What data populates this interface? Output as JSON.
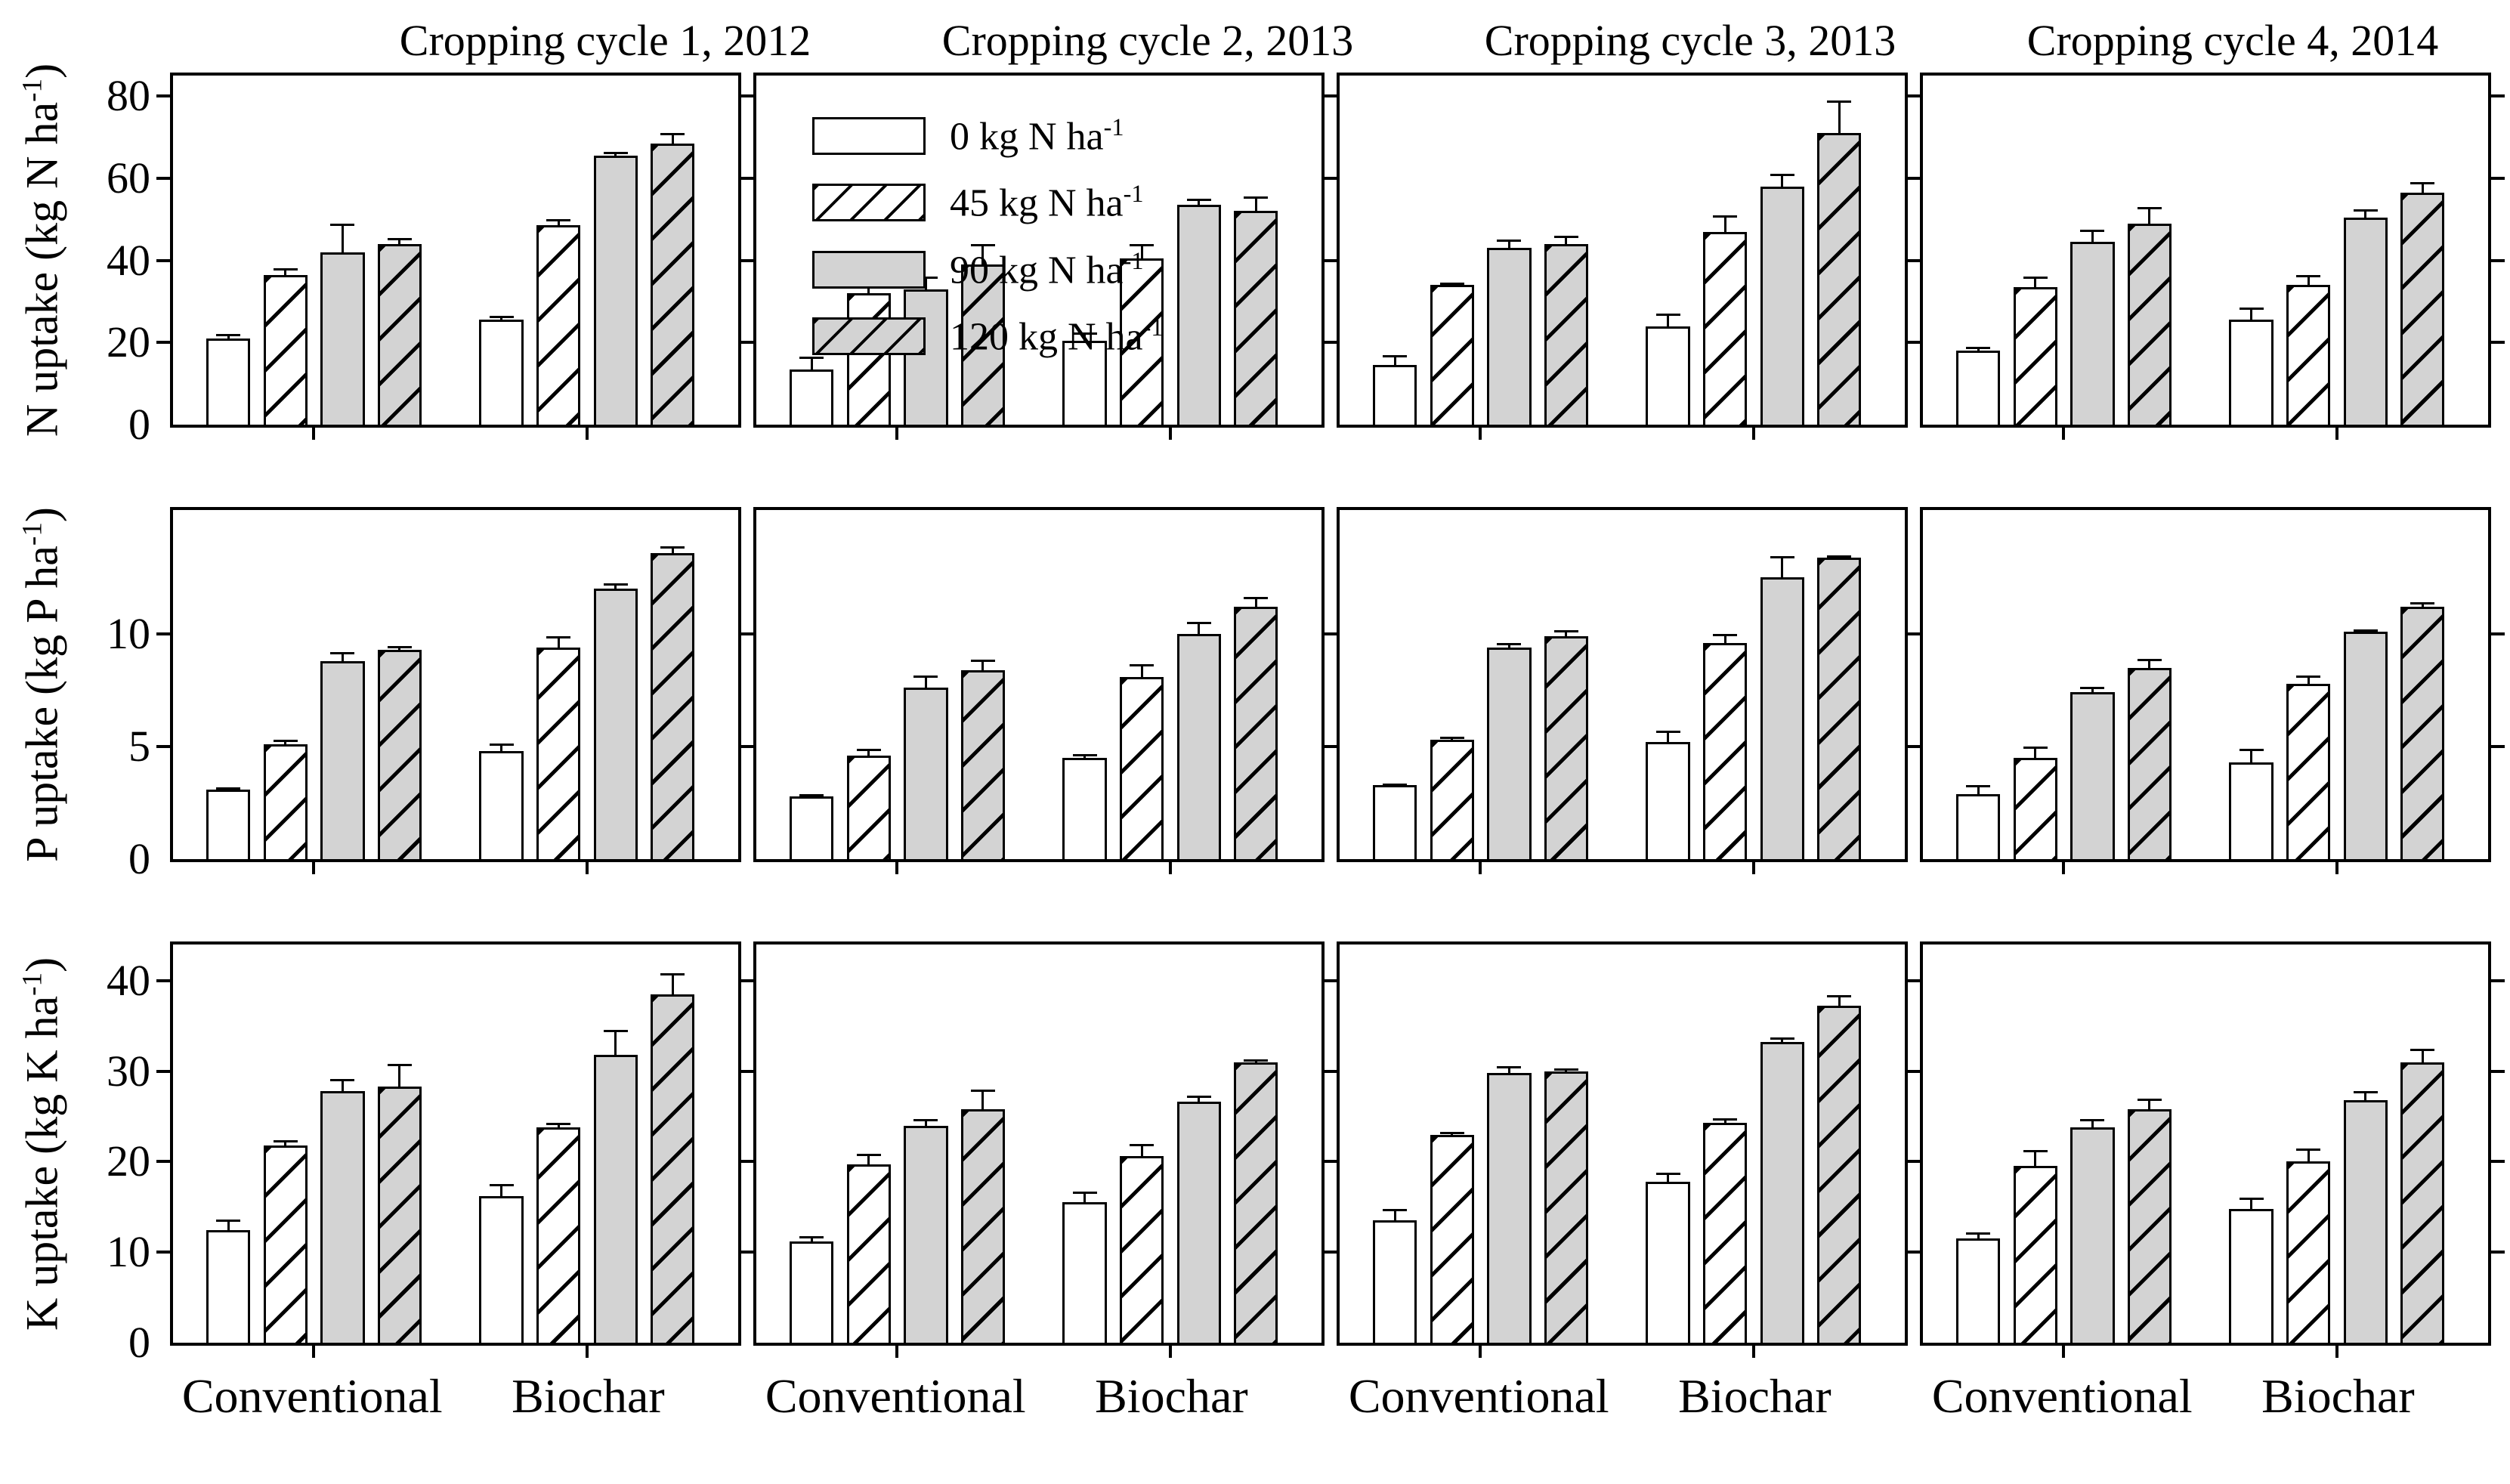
{
  "figure": {
    "column_titles": [
      "Cropping cycle 1, 2012",
      "Cropping cycle 2, 2013",
      "Cropping cycle 3, 2013",
      "Cropping cycle 4, 2014"
    ],
    "x_group_labels": [
      "Conventional",
      "Biochar"
    ],
    "row_y_labels": [
      {
        "prefix": "N uptake (kg N ha",
        "sup": "-1",
        "suffix": ")"
      },
      {
        "prefix": "P uptake (kg P ha",
        "sup": "-1",
        "suffix": ")"
      },
      {
        "prefix": "K uptake (kg K ha",
        "sup": "-1",
        "suffix": ")"
      }
    ],
    "legend": {
      "entries": [
        {
          "prefix": "0 kg N ha",
          "sup": "-1",
          "style": "white"
        },
        {
          "prefix": "45 kg N ha",
          "sup": "-1",
          "style": "white-hatched"
        },
        {
          "prefix": "90 kg N ha",
          "sup": "-1",
          "style": "gray"
        },
        {
          "prefix": "120 kg N ha",
          "sup": "-1",
          "style": "gray-hatched"
        }
      ]
    },
    "colors": {
      "bar_white": "#ffffff",
      "bar_gray": "#d3d3d3",
      "axis": "#000000",
      "background": "#ffffff"
    }
  },
  "chart_data": {
    "type": "bar",
    "groups": [
      "Conventional",
      "Biochar"
    ],
    "series_labels": [
      "0 kg N ha-1",
      "45 kg N ha-1",
      "90 kg N ha-1",
      "120 kg N ha-1"
    ],
    "bar_styles": [
      "white",
      "white-hatched",
      "gray",
      "gray-hatched"
    ],
    "error_bars": "upper, +1 SE",
    "legend_position": "top-left of second panel, first row",
    "rows": [
      {
        "ylabel": "N uptake (kg N ha-1)",
        "ylim": [
          0,
          85
        ],
        "yticks": [
          0,
          20,
          40,
          60,
          80
        ],
        "panels": [
          {
            "title": "Cropping cycle 1, 2012",
            "conventional": {
              "values": [
                21,
                36.5,
                42,
                44
              ],
              "errors": [
                1,
                1.5,
                7,
                1.5
              ]
            },
            "biochar": {
              "values": [
                25.5,
                48.5,
                65.5,
                68.5
              ],
              "errors": [
                1,
                1.5,
                1,
                2.5
              ]
            }
          },
          {
            "title": "Cropping cycle 2, 2013",
            "conventional": {
              "values": [
                13.5,
                32,
                33,
                39
              ],
              "errors": [
                3,
                5,
                3,
                5
              ]
            },
            "biochar": {
              "values": [
                20.5,
                40.5,
                53.5,
                52
              ],
              "errors": [
                2,
                3.5,
                1.5,
                3.5
              ]
            }
          },
          {
            "title": "Cropping cycle 3, 2013",
            "conventional": {
              "values": [
                14.5,
                34,
                43,
                44
              ],
              "errors": [
                2.5,
                0.5,
                2,
                2
              ]
            },
            "biochar": {
              "values": [
                24,
                47,
                58,
                71
              ],
              "errors": [
                3,
                4,
                3,
                8
              ]
            }
          },
          {
            "title": "Cropping cycle 4, 2014",
            "conventional": {
              "values": [
                18,
                33.5,
                44.5,
                49
              ],
              "errors": [
                1,
                2.5,
                3,
                4
              ]
            },
            "biochar": {
              "values": [
                25.5,
                34,
                50.5,
                56.5
              ],
              "errors": [
                3,
                2.5,
                2,
                2.5
              ]
            }
          }
        ]
      },
      {
        "ylabel": "P uptake (kg P ha-1)",
        "ylim": [
          0,
          15.5
        ],
        "yticks": [
          0,
          5,
          10
        ],
        "panels": [
          {
            "title": "Cropping cycle 1, 2012",
            "conventional": {
              "values": [
                3.1,
                5.1,
                8.8,
                9.3
              ],
              "errors": [
                0.1,
                0.2,
                0.4,
                0.15
              ]
            },
            "biochar": {
              "values": [
                4.8,
                9.4,
                12.0,
                13.6
              ],
              "errors": [
                0.35,
                0.5,
                0.25,
                0.3
              ]
            }
          },
          {
            "title": "Cropping cycle 2, 2013",
            "conventional": {
              "values": [
                2.8,
                4.6,
                7.6,
                8.4
              ],
              "errors": [
                0.1,
                0.3,
                0.55,
                0.45
              ]
            },
            "biochar": {
              "values": [
                4.5,
                8.1,
                10.0,
                11.2
              ],
              "errors": [
                0.15,
                0.55,
                0.55,
                0.45
              ]
            }
          },
          {
            "title": "Cropping cycle 3, 2013",
            "conventional": {
              "values": [
                3.3,
                5.3,
                9.4,
                9.9
              ],
              "errors": [
                0.05,
                0.15,
                0.2,
                0.25
              ]
            },
            "biochar": {
              "values": [
                5.2,
                9.6,
                12.5,
                13.4
              ],
              "errors": [
                0.5,
                0.4,
                0.95,
                0.1
              ]
            }
          },
          {
            "title": "Cropping cycle 4, 2014",
            "conventional": {
              "values": [
                2.9,
                4.5,
                7.4,
                8.5
              ],
              "errors": [
                0.4,
                0.5,
                0.25,
                0.4
              ]
            },
            "biochar": {
              "values": [
                4.3,
                7.8,
                10.1,
                11.2
              ],
              "errors": [
                0.6,
                0.35,
                0.1,
                0.2
              ]
            }
          }
        ]
      },
      {
        "ylabel": "K uptake (kg K ha-1)",
        "ylim": [
          0,
          44
        ],
        "yticks": [
          0,
          10,
          20,
          30,
          40
        ],
        "panels": [
          {
            "title": "Cropping cycle 1, 2012",
            "conventional": {
              "values": [
                12.4,
                21.8,
                27.8,
                28.3
              ],
              "errors": [
                1.2,
                0.6,
                1.3,
                2.5
              ]
            },
            "biochar": {
              "values": [
                16.2,
                23.8,
                31.8,
                38.5
              ],
              "errors": [
                1.3,
                0.5,
                2.8,
                2.3
              ]
            }
          },
          {
            "title": "Cropping cycle 2, 2013",
            "conventional": {
              "values": [
                11.2,
                19.7,
                24.0,
                25.8
              ],
              "errors": [
                0.6,
                1.2,
                0.7,
                2.2
              ]
            },
            "biochar": {
              "values": [
                15.5,
                20.6,
                26.6,
                31.0
              ],
              "errors": [
                1.2,
                1.4,
                0.7,
                0.3
              ]
            }
          },
          {
            "title": "Cropping cycle 3, 2013",
            "conventional": {
              "values": [
                13.5,
                23.0,
                29.8,
                30.0
              ],
              "errors": [
                1.3,
                0.3,
                0.8,
                0.3
              ]
            },
            "biochar": {
              "values": [
                17.8,
                24.3,
                33.2,
                37.2
              ],
              "errors": [
                1.0,
                0.5,
                0.5,
                1.2
              ]
            }
          },
          {
            "title": "Cropping cycle 4, 2014",
            "conventional": {
              "values": [
                11.5,
                19.5,
                23.8,
                25.8
              ],
              "errors": [
                0.7,
                1.8,
                0.9,
                1.2
              ]
            },
            "biochar": {
              "values": [
                14.8,
                20.0,
                26.8,
                31.0
              ],
              "errors": [
                1.2,
                1.5,
                1.0,
                1.5
              ]
            }
          }
        ]
      }
    ]
  }
}
